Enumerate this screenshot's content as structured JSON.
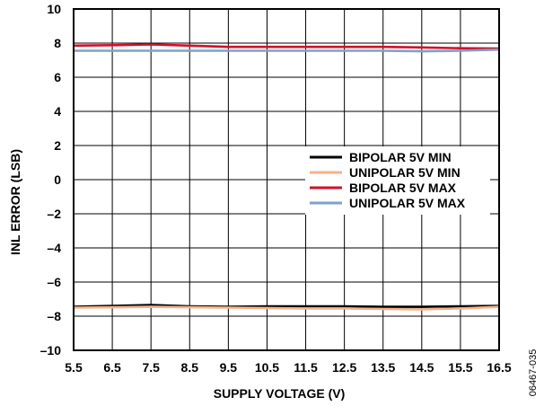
{
  "chart_data": {
    "type": "line",
    "xlabel": "SUPPLY VOLTAGE (V)",
    "ylabel": "INL ERROR (LSB)",
    "xlim": [
      5.5,
      16.5
    ],
    "ylim": [
      -10,
      10
    ],
    "x_ticks": [
      "5.5",
      "6.5",
      "7.5",
      "8.5",
      "9.5",
      "10.5",
      "11.5",
      "12.5",
      "13.5",
      "14.5",
      "15.5",
      "16.5"
    ],
    "y_ticks": [
      "10",
      "8",
      "6",
      "4",
      "2",
      "0",
      "–2",
      "–4",
      "–6",
      "–8",
      "–10"
    ],
    "grid": true,
    "legend_position": "right",
    "figure_id": "06467-035",
    "x": [
      5.5,
      6.5,
      7.5,
      8.5,
      9.5,
      10.5,
      11.5,
      12.5,
      13.5,
      14.5,
      15.5,
      16.5
    ],
    "series": [
      {
        "name": "BIPOLAR 5V MIN",
        "color": "#000000",
        "values": [
          -7.45,
          -7.4,
          -7.35,
          -7.42,
          -7.45,
          -7.42,
          -7.42,
          -7.42,
          -7.45,
          -7.45,
          -7.42,
          -7.4
        ]
      },
      {
        "name": "UNIPOLAR 5V MIN",
        "color": "#f5b38a",
        "values": [
          -7.5,
          -7.48,
          -7.45,
          -7.48,
          -7.5,
          -7.52,
          -7.55,
          -7.55,
          -7.58,
          -7.6,
          -7.55,
          -7.45
        ]
      },
      {
        "name": "BIPOLAR 5V MAX",
        "color": "#d0112b",
        "values": [
          7.85,
          7.88,
          7.92,
          7.85,
          7.78,
          7.78,
          7.78,
          7.78,
          7.78,
          7.75,
          7.7,
          7.68
        ]
      },
      {
        "name": "UNIPOLAR 5V MAX",
        "color": "#7fa0c8",
        "values": [
          7.55,
          7.55,
          7.55,
          7.55,
          7.55,
          7.55,
          7.55,
          7.55,
          7.55,
          7.52,
          7.55,
          7.62
        ]
      }
    ]
  }
}
